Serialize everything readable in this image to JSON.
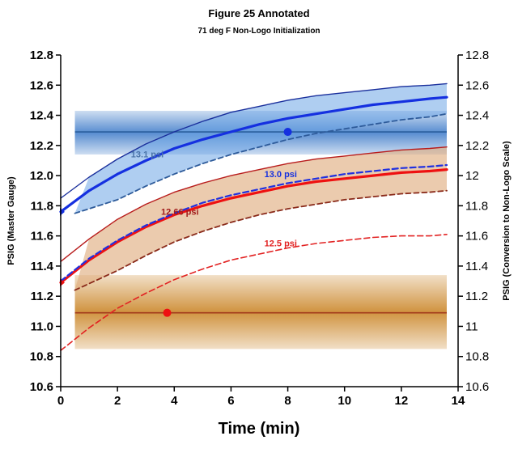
{
  "chart_data": {
    "type": "line",
    "title": "Figure 25 Annotated",
    "subtitle": "71 deg F Non-Logo Initialization",
    "xlabel": "Time (min)",
    "ylabel": "PSIG (Master Gauge)",
    "ylabel_right": "PSIG (Conversion to Non-Logo Scale)",
    "xlim": [
      0,
      14
    ],
    "ylim": [
      10.6,
      12.8
    ],
    "x_ticks": [
      "0",
      "2",
      "4",
      "6",
      "8",
      "10",
      "12",
      "14"
    ],
    "y_ticks_left": [
      "10.6",
      "10.8",
      "11.0",
      "11.2",
      "11.4",
      "11.6",
      "11.8",
      "12.0",
      "12.2",
      "12.4",
      "12.6",
      "12.8"
    ],
    "y_ticks_right": [
      "10.6",
      "10.8",
      "11",
      "11.2",
      "11.4",
      "11.6",
      "11.8",
      "12",
      "12.2",
      "12.4",
      "12.6",
      "12.8"
    ],
    "grid": false,
    "x": [
      0,
      1,
      2,
      3,
      4,
      5,
      6,
      7,
      8,
      9,
      10,
      11,
      12,
      13,
      13.6
    ],
    "series": [
      {
        "style": "blue-upper-thin",
        "color": "#1a2f9c",
        "values": [
          11.85,
          11.99,
          12.11,
          12.21,
          12.29,
          12.36,
          12.42,
          12.46,
          12.5,
          12.53,
          12.55,
          12.57,
          12.59,
          12.6,
          12.61
        ]
      },
      {
        "style": "blue-thick",
        "color": "#1530e0",
        "values": [
          11.76,
          11.9,
          12.01,
          12.1,
          12.18,
          12.24,
          12.29,
          12.34,
          12.38,
          12.41,
          12.44,
          12.47,
          12.49,
          12.51,
          12.52
        ]
      },
      {
        "style": "blue-lower-dashed",
        "color": "#2e5b9a",
        "x_start": 0.5,
        "values": [
          null,
          11.75,
          11.84,
          11.93,
          12.01,
          12.08,
          12.14,
          12.19,
          12.24,
          12.28,
          12.31,
          12.34,
          12.37,
          12.39,
          12.41
        ]
      },
      {
        "style": "red-upper-thin",
        "color": "#b81c1c",
        "values": [
          11.43,
          11.58,
          11.71,
          11.81,
          11.89,
          11.95,
          12.0,
          12.04,
          12.08,
          12.11,
          12.13,
          12.15,
          12.17,
          12.18,
          12.19
        ]
      },
      {
        "style": "blue-dashed-overlay",
        "color": "#2030e0",
        "values": [
          11.3,
          11.45,
          11.57,
          11.67,
          11.75,
          11.82,
          11.87,
          11.91,
          11.95,
          11.98,
          12.01,
          12.03,
          12.05,
          12.06,
          12.07
        ]
      },
      {
        "style": "red-thick",
        "color": "#ee1111",
        "values": [
          11.29,
          11.44,
          11.56,
          11.66,
          11.74,
          11.8,
          11.85,
          11.89,
          11.93,
          11.96,
          11.98,
          12.0,
          12.02,
          12.03,
          12.04
        ]
      },
      {
        "style": "red-lower-dashed",
        "color": "#8a2a1a",
        "x_start": 0.5,
        "values": [
          null,
          11.24,
          11.37,
          11.47,
          11.56,
          11.63,
          11.69,
          11.74,
          11.78,
          11.81,
          11.84,
          11.86,
          11.88,
          11.89,
          11.9
        ]
      },
      {
        "style": "red-dashed-bottom",
        "color": "#e22222",
        "values": [
          10.84,
          10.99,
          11.12,
          11.22,
          11.31,
          11.38,
          11.44,
          11.48,
          11.52,
          11.55,
          11.57,
          11.59,
          11.6,
          11.6,
          11.61
        ]
      }
    ],
    "bands": [
      {
        "color": "#3a78c8",
        "y_low": 12.14,
        "y_high": 12.43,
        "x_range": [
          0.5,
          13.6
        ],
        "center_line": 12.29
      },
      {
        "color": "#c8801e",
        "y_low": 10.85,
        "y_high": 11.34,
        "x_range": [
          0.5,
          13.6
        ],
        "center_line": 11.09
      }
    ],
    "points": [
      {
        "x": 8.0,
        "y": 12.29,
        "color": "#1530e0"
      },
      {
        "x": 3.75,
        "y": 11.09,
        "color": "#ee1111"
      }
    ],
    "annotations": [
      {
        "text": "13.1 psi",
        "x": 3.05,
        "y": 12.12,
        "color": "#4a73a8"
      },
      {
        "text": "13.0 psi",
        "x": 7.75,
        "y": 11.99,
        "color": "#1530e0"
      },
      {
        "text": "12.66 psi",
        "x": 4.2,
        "y": 11.74,
        "color": "#a11c1c"
      },
      {
        "text": "12.5 psi",
        "x": 7.75,
        "y": 11.53,
        "color": "#e22222"
      }
    ]
  }
}
